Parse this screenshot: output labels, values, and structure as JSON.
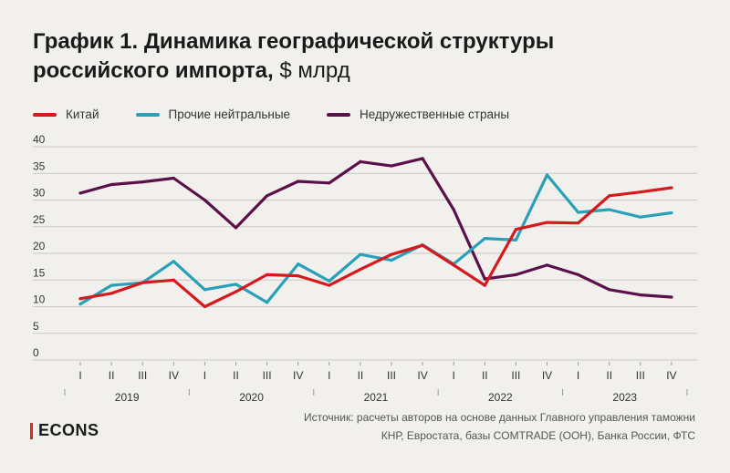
{
  "title": {
    "bold": "График 1. Динамика географической структуры российского импорта,",
    "regular": " $ млрд"
  },
  "legend": [
    {
      "label": "Китай",
      "color": "#d7191c"
    },
    {
      "label": "Прочие нейтральные",
      "color": "#2aa0b8"
    },
    {
      "label": "Недружественные страны",
      "color": "#5c1049"
    }
  ],
  "source": "Источник: расчеты авторов на основе данных Главного управления таможни КНР, Евростата, базы COMTRADE (ООН), Банка России, ФТС",
  "logo": "ECONS",
  "chart_data": {
    "type": "line",
    "title": "График 1. Динамика географической структуры российского импорта, $ млрд",
    "xlabel": "",
    "ylabel": "",
    "ylim": [
      0,
      40
    ],
    "yticks": [
      0,
      5,
      10,
      15,
      20,
      25,
      30,
      35,
      40
    ],
    "grid": true,
    "legend_position": "top",
    "quarter_labels": [
      "I",
      "II",
      "III",
      "IV",
      "I",
      "II",
      "III",
      "IV",
      "I",
      "II",
      "III",
      "IV",
      "I",
      "II",
      "III",
      "IV",
      "I",
      "II",
      "III",
      "IV"
    ],
    "years": [
      "2019",
      "2020",
      "2021",
      "2022",
      "2023"
    ],
    "x": [
      "2019 I",
      "2019 II",
      "2019 III",
      "2019 IV",
      "2020 I",
      "2020 II",
      "2020 III",
      "2020 IV",
      "2021 I",
      "2021 II",
      "2021 III",
      "2021 IV",
      "2022 I",
      "2022 II",
      "2022 III",
      "2022 IV",
      "2023 I",
      "2023 II",
      "2023 III",
      "2023 IV"
    ],
    "series": [
      {
        "name": "Китай",
        "color": "#d7191c",
        "values": [
          11.5,
          12.5,
          14.5,
          15.0,
          10.0,
          12.8,
          16.0,
          15.8,
          14.0,
          17.0,
          19.8,
          21.5,
          17.8,
          14.0,
          24.5,
          25.8,
          25.7,
          30.8,
          31.5,
          32.3
        ]
      },
      {
        "name": "Прочие нейтральные",
        "color": "#2aa0b8",
        "values": [
          10.5,
          14.0,
          14.5,
          18.5,
          13.2,
          14.2,
          10.8,
          18.0,
          14.8,
          19.8,
          18.7,
          21.6,
          18.0,
          22.8,
          22.5,
          34.7,
          27.7,
          28.2,
          26.8,
          27.6
        ]
      },
      {
        "name": "Недружественные страны",
        "color": "#5c1049",
        "values": [
          31.3,
          32.9,
          33.4,
          34.1,
          30.0,
          24.8,
          30.8,
          33.5,
          33.2,
          37.2,
          36.4,
          37.8,
          28.2,
          15.2,
          16.0,
          17.8,
          16.0,
          13.2,
          12.2,
          11.8
        ]
      }
    ]
  }
}
